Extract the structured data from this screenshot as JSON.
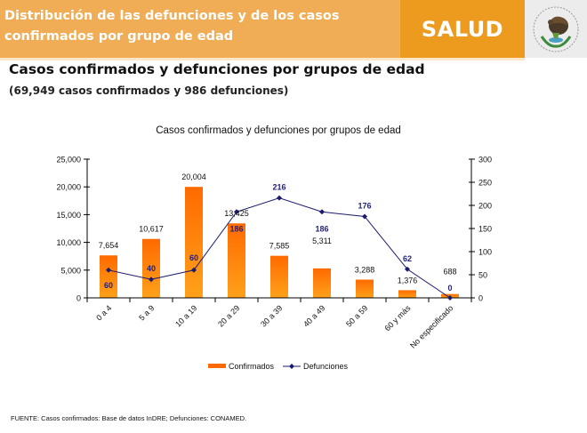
{
  "header": {
    "title": "Distribución de las defunciones y de los  casos confirmados por grupo de edad",
    "brand": "SALUD",
    "logo_icon": "mexican-coat-of-arms-icon"
  },
  "section": {
    "title": "Casos confirmados y defunciones por grupos de edad",
    "subtitle": "(69,949 casos confirmados y 986 defunciones)"
  },
  "colors": {
    "header_light": "#f0ad55",
    "header_dark": "#ec9b1f",
    "bar_top": "#ff6a00",
    "bar_bottom": "#ffa11a",
    "line": "#1a1a6e",
    "line_label": "#1f1f80"
  },
  "chart_data": {
    "type": "bar",
    "title": "Casos confirmados y defunciones por grupos de edad",
    "categories": [
      "0 a 4",
      "5 a 9",
      "10 a 19",
      "20 a 29",
      "30 a 39",
      "40 a 49",
      "50 a 59",
      "60 y más",
      "No especificado"
    ],
    "series": [
      {
        "name": "Confirmados",
        "type": "bar",
        "axis": "left",
        "values": [
          7654,
          10617,
          20004,
          13425,
          7585,
          5311,
          3288,
          1376,
          688
        ],
        "labels": [
          "7,654",
          "10,617",
          "20,004",
          "13,425",
          "7,585",
          "5,311",
          "3,288",
          "1,376",
          "688"
        ]
      },
      {
        "name": "Defunciones",
        "type": "line",
        "axis": "right",
        "values": [
          60,
          40,
          60,
          186,
          216,
          186,
          176,
          62,
          0
        ],
        "labels": [
          "60",
          "40",
          "60",
          "186",
          "216",
          "186",
          "176",
          "62",
          "0"
        ]
      }
    ],
    "left_axis": {
      "range": [
        0,
        25000
      ],
      "ticks": [
        0,
        5000,
        10000,
        15000,
        20000,
        25000
      ],
      "tick_labels": [
        "0",
        "5,000",
        "10,000",
        "15,000",
        "20,000",
        "25,000"
      ]
    },
    "right_axis": {
      "range": [
        0,
        300
      ],
      "ticks": [
        0,
        50,
        100,
        150,
        200,
        250,
        300
      ],
      "tick_labels": [
        "0",
        "50",
        "100",
        "150",
        "200",
        "250",
        "300"
      ]
    },
    "xlabel": "",
    "ylabel": "",
    "grid": false,
    "legend": {
      "position": "bottom",
      "entries": [
        "Confirmados",
        "Defunciones"
      ]
    }
  },
  "footer": {
    "source": "FUENTE: Casos confirmados: Base de datos InDRE; Defunciones: CONAMED."
  }
}
